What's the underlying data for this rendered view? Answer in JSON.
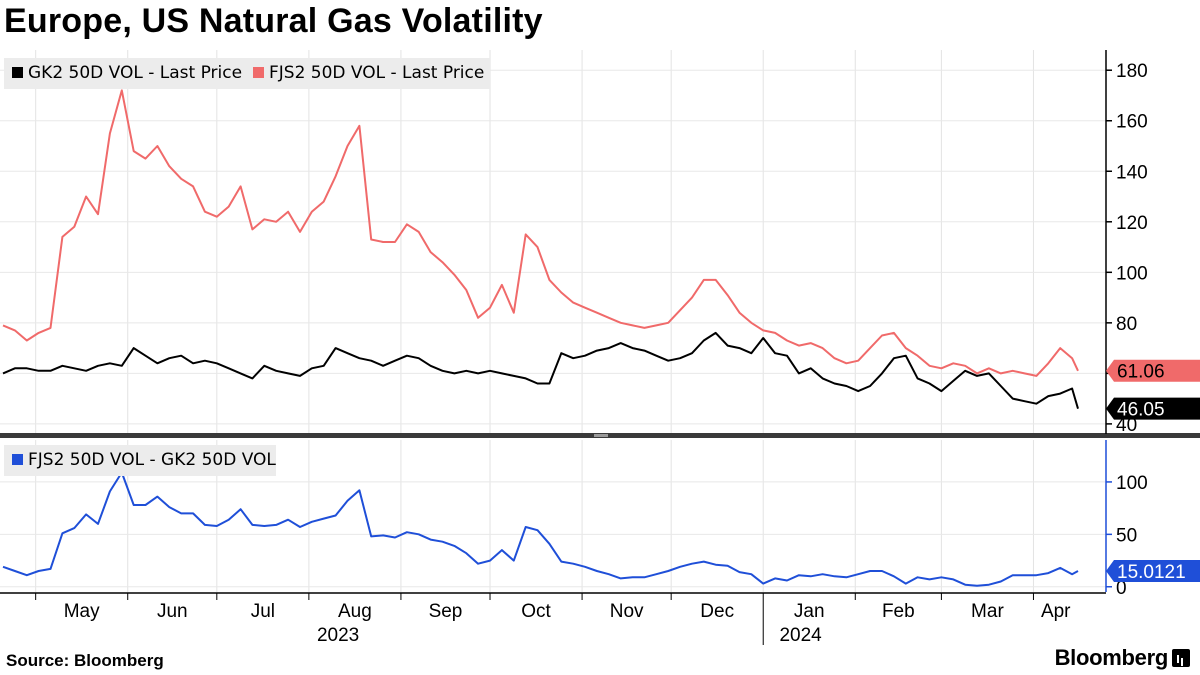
{
  "title": "Europe, US Natural Gas Volatility",
  "source": "Source: Bloomberg",
  "brand": "Bloomberg",
  "colors": {
    "black_series": "#000000",
    "red_series": "#f06a6a",
    "blue_series": "#1f4fd8",
    "grid": "#dddddd"
  },
  "chart_data": [
    {
      "type": "line",
      "x_start": "2023-04-20",
      "ylim": [
        36,
        188
      ],
      "yticks": [
        40,
        60,
        80,
        100,
        120,
        140,
        160,
        180
      ],
      "grid": true,
      "legend_position": "top-left",
      "x_ticks": [
        "May",
        "Jun",
        "Jul",
        "Aug",
        "Sep",
        "Oct",
        "Nov",
        "Dec",
        "Jan",
        "Feb",
        "Mar",
        "Apr"
      ],
      "x_years": [
        "2023",
        "2024"
      ],
      "series": [
        {
          "name": "GK2 50D VOL - Last Price",
          "last_label": "46.05",
          "x": [
            "2023-04-20",
            "2023-04-24",
            "2023-04-28",
            "2023-05-02",
            "2023-05-06",
            "2023-05-10",
            "2023-05-14",
            "2023-05-18",
            "2023-05-22",
            "2023-05-26",
            "2023-05-30",
            "2023-06-03",
            "2023-06-07",
            "2023-06-11",
            "2023-06-15",
            "2023-06-19",
            "2023-06-23",
            "2023-06-27",
            "2023-07-01",
            "2023-07-05",
            "2023-07-09",
            "2023-07-13",
            "2023-07-17",
            "2023-07-21",
            "2023-07-25",
            "2023-07-29",
            "2023-08-02",
            "2023-08-06",
            "2023-08-10",
            "2023-08-14",
            "2023-08-18",
            "2023-08-22",
            "2023-08-26",
            "2023-08-30",
            "2023-09-03",
            "2023-09-07",
            "2023-09-11",
            "2023-09-15",
            "2023-09-19",
            "2023-09-23",
            "2023-09-27",
            "2023-10-01",
            "2023-10-05",
            "2023-10-09",
            "2023-10-13",
            "2023-10-17",
            "2023-10-21",
            "2023-10-25",
            "2023-10-29",
            "2023-11-02",
            "2023-11-06",
            "2023-11-10",
            "2023-11-14",
            "2023-11-18",
            "2023-11-22",
            "2023-11-26",
            "2023-11-30",
            "2023-12-04",
            "2023-12-08",
            "2023-12-12",
            "2023-12-16",
            "2023-12-20",
            "2023-12-24",
            "2023-12-28",
            "2024-01-01",
            "2024-01-05",
            "2024-01-09",
            "2024-01-13",
            "2024-01-17",
            "2024-01-21",
            "2024-01-25",
            "2024-01-29",
            "2024-02-02",
            "2024-02-06",
            "2024-02-10",
            "2024-02-14",
            "2024-02-18",
            "2024-02-22",
            "2024-02-26",
            "2024-03-01",
            "2024-03-05",
            "2024-03-09",
            "2024-03-13",
            "2024-03-17",
            "2024-03-21",
            "2024-03-25",
            "2024-03-29",
            "2024-04-02",
            "2024-04-06",
            "2024-04-10",
            "2024-04-14",
            "2024-04-16"
          ],
          "values": [
            60,
            62,
            62,
            61,
            61,
            63,
            62,
            61,
            63,
            64,
            63,
            70,
            67,
            64,
            66,
            67,
            64,
            65,
            64,
            62,
            60,
            58,
            63,
            61,
            60,
            59,
            62,
            63,
            70,
            68,
            66,
            65,
            63,
            65,
            67,
            66,
            63,
            61,
            60,
            61,
            60,
            61,
            60,
            59,
            58,
            56,
            56,
            68,
            66,
            67,
            69,
            70,
            72,
            70,
            69,
            67,
            65,
            66,
            68,
            73,
            76,
            71,
            70,
            68,
            74,
            68,
            67,
            60,
            62,
            58,
            56,
            55,
            53,
            55,
            60,
            66,
            67,
            58,
            56,
            53,
            57,
            61,
            59,
            60,
            55,
            50,
            49,
            48,
            51,
            52,
            54,
            46
          ]
        },
        {
          "name": "FJS2 50D VOL - Last Price",
          "last_label": "61.06",
          "x": [
            "2023-04-20",
            "2023-04-24",
            "2023-04-28",
            "2023-05-02",
            "2023-05-06",
            "2023-05-10",
            "2023-05-14",
            "2023-05-18",
            "2023-05-22",
            "2023-05-26",
            "2023-05-30",
            "2023-06-03",
            "2023-06-07",
            "2023-06-11",
            "2023-06-15",
            "2023-06-19",
            "2023-06-23",
            "2023-06-27",
            "2023-07-01",
            "2023-07-05",
            "2023-07-09",
            "2023-07-13",
            "2023-07-17",
            "2023-07-21",
            "2023-07-25",
            "2023-07-29",
            "2023-08-02",
            "2023-08-06",
            "2023-08-10",
            "2023-08-14",
            "2023-08-18",
            "2023-08-22",
            "2023-08-26",
            "2023-08-30",
            "2023-09-03",
            "2023-09-07",
            "2023-09-11",
            "2023-09-15",
            "2023-09-19",
            "2023-09-23",
            "2023-09-27",
            "2023-10-01",
            "2023-10-05",
            "2023-10-09",
            "2023-10-13",
            "2023-10-17",
            "2023-10-21",
            "2023-10-25",
            "2023-10-29",
            "2023-11-02",
            "2023-11-06",
            "2023-11-10",
            "2023-11-14",
            "2023-11-18",
            "2023-11-22",
            "2023-11-26",
            "2023-11-30",
            "2023-12-04",
            "2023-12-08",
            "2023-12-12",
            "2023-12-16",
            "2023-12-20",
            "2023-12-24",
            "2023-12-28",
            "2024-01-01",
            "2024-01-05",
            "2024-01-09",
            "2024-01-13",
            "2024-01-17",
            "2024-01-21",
            "2024-01-25",
            "2024-01-29",
            "2024-02-02",
            "2024-02-06",
            "2024-02-10",
            "2024-02-14",
            "2024-02-18",
            "2024-02-22",
            "2024-02-26",
            "2024-03-01",
            "2024-03-05",
            "2024-03-09",
            "2024-03-13",
            "2024-03-17",
            "2024-03-21",
            "2024-03-25",
            "2024-03-29",
            "2024-04-02",
            "2024-04-06",
            "2024-04-10",
            "2024-04-14",
            "2024-04-16"
          ],
          "values": [
            79,
            77,
            73,
            76,
            78,
            114,
            118,
            130,
            123,
            155,
            172,
            148,
            145,
            150,
            142,
            137,
            134,
            124,
            122,
            126,
            134,
            117,
            121,
            120,
            124,
            116,
            124,
            128,
            138,
            150,
            158,
            113,
            112,
            112,
            119,
            116,
            108,
            104,
            99,
            93,
            82,
            86,
            95,
            84,
            115,
            110,
            97,
            92,
            88,
            86,
            84,
            82,
            80,
            79,
            78,
            79,
            80,
            85,
            90,
            97,
            97,
            91,
            84,
            80,
            77,
            76,
            73,
            71,
            72,
            70,
            66,
            64,
            65,
            70,
            75,
            76,
            70,
            67,
            63,
            62,
            64,
            63,
            60,
            62,
            60,
            61,
            60,
            59,
            64,
            70,
            66,
            61
          ]
        }
      ]
    },
    {
      "type": "line",
      "x_start": "2023-04-20",
      "ylim": [
        -5,
        140
      ],
      "yticks": [
        0,
        50,
        100
      ],
      "grid": true,
      "legend_position": "top-left",
      "series": [
        {
          "name": "FJS2 50D VOL - GK2 50D VOL",
          "last_label": "15.0121",
          "x": [
            "2023-04-20",
            "2023-04-24",
            "2023-04-28",
            "2023-05-02",
            "2023-05-06",
            "2023-05-10",
            "2023-05-14",
            "2023-05-18",
            "2023-05-22",
            "2023-05-26",
            "2023-05-30",
            "2023-06-03",
            "2023-06-07",
            "2023-06-11",
            "2023-06-15",
            "2023-06-19",
            "2023-06-23",
            "2023-06-27",
            "2023-07-01",
            "2023-07-05",
            "2023-07-09",
            "2023-07-13",
            "2023-07-17",
            "2023-07-21",
            "2023-07-25",
            "2023-07-29",
            "2023-08-02",
            "2023-08-06",
            "2023-08-10",
            "2023-08-14",
            "2023-08-18",
            "2023-08-22",
            "2023-08-26",
            "2023-08-30",
            "2023-09-03",
            "2023-09-07",
            "2023-09-11",
            "2023-09-15",
            "2023-09-19",
            "2023-09-23",
            "2023-09-27",
            "2023-10-01",
            "2023-10-05",
            "2023-10-09",
            "2023-10-13",
            "2023-10-17",
            "2023-10-21",
            "2023-10-25",
            "2023-10-29",
            "2023-11-02",
            "2023-11-06",
            "2023-11-10",
            "2023-11-14",
            "2023-11-18",
            "2023-11-22",
            "2023-11-26",
            "2023-11-30",
            "2023-12-04",
            "2023-12-08",
            "2023-12-12",
            "2023-12-16",
            "2023-12-20",
            "2023-12-24",
            "2023-12-28",
            "2024-01-01",
            "2024-01-05",
            "2024-01-09",
            "2024-01-13",
            "2024-01-17",
            "2024-01-21",
            "2024-01-25",
            "2024-01-29",
            "2024-02-02",
            "2024-02-06",
            "2024-02-10",
            "2024-02-14",
            "2024-02-18",
            "2024-02-22",
            "2024-02-26",
            "2024-03-01",
            "2024-03-05",
            "2024-03-09",
            "2024-03-13",
            "2024-03-17",
            "2024-03-21",
            "2024-03-25",
            "2024-03-29",
            "2024-04-02",
            "2024-04-06",
            "2024-04-10",
            "2024-04-14",
            "2024-04-16"
          ],
          "values": [
            19,
            15,
            11,
            15,
            17,
            51,
            56,
            69,
            60,
            91,
            109,
            78,
            78,
            86,
            76,
            70,
            70,
            59,
            58,
            64,
            74,
            59,
            58,
            59,
            64,
            57,
            62,
            65,
            68,
            82,
            92,
            48,
            49,
            47,
            52,
            50,
            45,
            43,
            39,
            32,
            22,
            25,
            35,
            25,
            57,
            54,
            41,
            24,
            22,
            19,
            15,
            12,
            8,
            9,
            9,
            12,
            15,
            19,
            22,
            24,
            21,
            20,
            14,
            12,
            3,
            8,
            6,
            11,
            10,
            12,
            10,
            9,
            12,
            15,
            15,
            10,
            3,
            9,
            7,
            9,
            7,
            2,
            1,
            2,
            5,
            11,
            11,
            11,
            13,
            18,
            12,
            15
          ]
        }
      ]
    }
  ]
}
